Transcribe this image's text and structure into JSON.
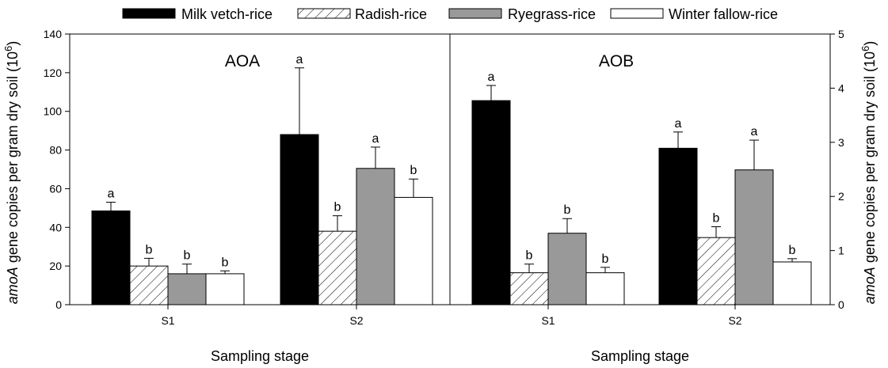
{
  "chart_data": [
    {
      "type": "bar",
      "panel_label": "AOA",
      "xlabel": "Sampling stage",
      "ylabel_italic": "amoA",
      "ylabel_rest": " gene copies per gram dry soil (10",
      "ylabel_sup": "6",
      "ylabel_close": ")",
      "axis_side": "left",
      "ylim": [
        0,
        140
      ],
      "yticks": [
        0,
        20,
        40,
        60,
        80,
        100,
        120,
        140
      ],
      "categories": [
        "S1",
        "S2"
      ],
      "series": [
        {
          "name": "Milk vetch-rice",
          "values": [
            48.5,
            88
          ],
          "errors": [
            4.5,
            34.5
          ],
          "letters": [
            "a",
            "a"
          ]
        },
        {
          "name": "Radish-rice",
          "values": [
            20,
            38
          ],
          "errors": [
            4,
            8
          ],
          "letters": [
            "b",
            "b"
          ]
        },
        {
          "name": "Ryegrass-rice",
          "values": [
            16,
            70.5
          ],
          "errors": [
            5,
            11
          ],
          "letters": [
            "b",
            "a"
          ]
        },
        {
          "name": "Winter fallow-rice",
          "values": [
            16,
            55.5
          ],
          "errors": [
            1.5,
            9.5
          ],
          "letters": [
            "b",
            "b"
          ]
        }
      ]
    },
    {
      "type": "bar",
      "panel_label": "AOB",
      "xlabel": "Sampling stage",
      "ylabel_italic": "amoA",
      "ylabel_rest": " gene copies per gram dry soil (10",
      "ylabel_sup": "6",
      "ylabel_close": ")",
      "axis_side": "right",
      "ylim": [
        0,
        5
      ],
      "yticks": [
        0,
        1,
        2,
        3,
        4,
        5
      ],
      "categories": [
        "S1",
        "S2"
      ],
      "series": [
        {
          "name": "Milk vetch-rice",
          "values": [
            3.77,
            2.89
          ],
          "errors": [
            0.28,
            0.3
          ],
          "letters": [
            "a",
            "a"
          ]
        },
        {
          "name": "Radish-rice",
          "values": [
            0.59,
            1.24
          ],
          "errors": [
            0.16,
            0.2
          ],
          "letters": [
            "b",
            "b"
          ]
        },
        {
          "name": "Ryegrass-rice",
          "values": [
            1.32,
            2.49
          ],
          "errors": [
            0.27,
            0.55
          ],
          "letters": [
            "b",
            "a"
          ]
        },
        {
          "name": "Winter fallow-rice",
          "values": [
            0.59,
            0.79
          ],
          "errors": [
            0.1,
            0.06
          ],
          "letters": [
            "b",
            "b"
          ]
        }
      ]
    }
  ],
  "legend": [
    {
      "name": "Milk vetch-rice",
      "fill": "#000000"
    },
    {
      "name": "Radish-rice",
      "fill": "hatch"
    },
    {
      "name": "Ryegrass-rice",
      "fill": "#999999"
    },
    {
      "name": "Winter fallow-rice",
      "fill": "#ffffff"
    }
  ],
  "colors": {
    "milk_vetch": "#000000",
    "ryegrass": "#999999",
    "fallow": "#ffffff",
    "frame": "#000000"
  }
}
